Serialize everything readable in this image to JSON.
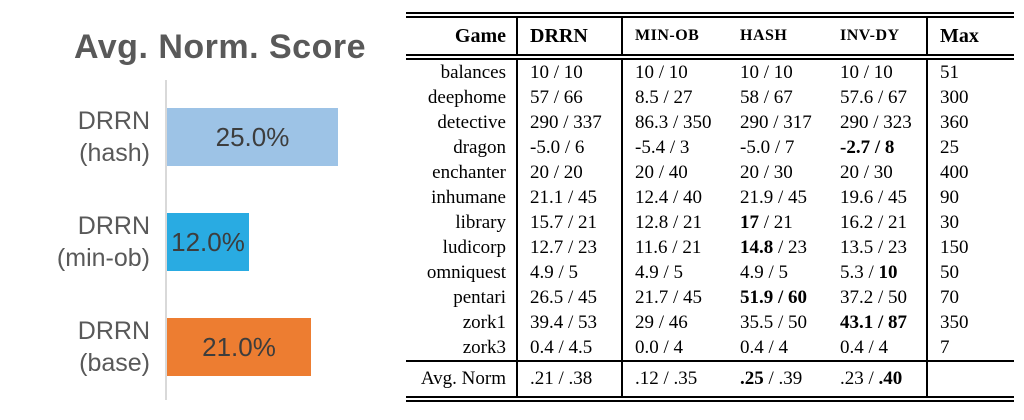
{
  "chart_data": [
    {
      "type": "bar",
      "orientation": "horizontal",
      "title": "Avg. Norm. Score",
      "unit": "percent",
      "xlim": [
        0,
        33
      ],
      "categories": [
        "DRRN (hash)",
        "DRRN (min-ob)",
        "DRRN (base)"
      ],
      "values": [
        25.0,
        12.0,
        21.0
      ],
      "bars": [
        {
          "label_line1": "DRRN",
          "label_line2": "(hash)",
          "value": 25.0,
          "display": "25.0%",
          "color": "#9dc3e6"
        },
        {
          "label_line1": "DRRN",
          "label_line2": "(min-ob)",
          "value": 12.0,
          "display": "12.0%",
          "color": "#29abe2"
        },
        {
          "label_line1": "DRRN",
          "label_line2": "(base)",
          "value": 21.0,
          "display": "21.0%",
          "color": "#ed7d31"
        }
      ]
    },
    {
      "type": "table",
      "columns": [
        "Game",
        "DRRN",
        "MIN-OB",
        "HASH",
        "INV-DY",
        "Max"
      ],
      "rows": [
        [
          "balances",
          "10 / 10",
          "10 / 10",
          "10 / 10",
          "10 / 10",
          "51"
        ],
        [
          "deephome",
          "57 / 66",
          "8.5 / 27",
          "58 / 67",
          "57.6 / 67",
          "300"
        ],
        [
          "detective",
          "290 / 337",
          "86.3 / 350",
          "290 / 317",
          "290 / 323",
          "360"
        ],
        [
          "dragon",
          "-5.0 / 6",
          "-5.4 / 3",
          "-5.0 / 7",
          "**-2.7 / 8**",
          "25"
        ],
        [
          "enchanter",
          "20 / 20",
          "20 / 40",
          "20 / 30",
          "20 / 30",
          "400"
        ],
        [
          "inhumane",
          "21.1 / 45",
          "12.4 / 40",
          "21.9 / 45",
          "19.6 / 45",
          "90"
        ],
        [
          "library",
          "15.7 / 21",
          "12.8 / 21",
          "**17** / 21",
          "16.2 / 21",
          "30"
        ],
        [
          "ludicorp",
          "12.7 / 23",
          "11.6 / 21",
          "**14.8** / 23",
          "13.5 / 23",
          "150"
        ],
        [
          "omniquest",
          "4.9 / 5",
          "4.9 / 5",
          "4.9 / 5",
          "5.3 / **10**",
          "50"
        ],
        [
          "pentari",
          "26.5 / 45",
          "21.7 / 45",
          "**51.9 / 60**",
          "37.2 / 50",
          "70"
        ],
        [
          "zork1",
          "39.4 / 53",
          "29 / 46",
          "35.5 / 50",
          "**43.1 / 87**",
          "350"
        ],
        [
          "zork3",
          "0.4 / 4.5",
          "0.0 / 4",
          "0.4 / 4",
          "0.4 / 4",
          "7"
        ]
      ],
      "footer": [
        "Avg. Norm",
        ".21 / .38",
        ".12 / .35",
        "**.25** / .39",
        ".23 / **.40**",
        ""
      ]
    }
  ]
}
